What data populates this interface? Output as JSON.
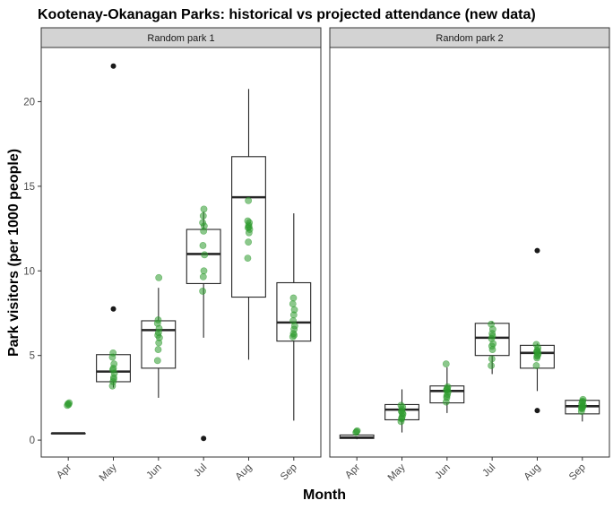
{
  "chart_data": {
    "type": "box",
    "title": "Kootenay-Okanagan Parks: historical vs projected attendance (new data)",
    "xlabel": "Month",
    "ylabel": "Park visitors (per 1000 people)",
    "categories": [
      "Apr",
      "May",
      "Jun",
      "Jul",
      "Aug",
      "Sep"
    ],
    "ylim": [
      -1,
      23.2
    ],
    "yticks": [
      0,
      5,
      10,
      15,
      20
    ],
    "grid": false,
    "colors": {
      "projected_points": "#2e9b2e",
      "box_stroke": "#262626",
      "outlier": "#1a1a1a",
      "strip_fill": "#d3d3d3"
    },
    "panels": [
      {
        "name": "Random park 1",
        "boxes": [
          {
            "month": "Apr",
            "q1": 0.4,
            "median": 0.4,
            "q3": 0.4,
            "whisker_low": 0.4,
            "whisker_high": 0.4,
            "outliers": []
          },
          {
            "month": "May",
            "q1": 3.45,
            "median": 4.05,
            "q3": 5.05,
            "whisker_low": 3.1,
            "whisker_high": 5.1,
            "outliers": [
              22.1,
              7.75
            ]
          },
          {
            "month": "Jun",
            "q1": 4.25,
            "median": 6.5,
            "q3": 7.05,
            "whisker_low": 2.5,
            "whisker_high": 9.0,
            "outliers": []
          },
          {
            "month": "Jul",
            "q1": 9.25,
            "median": 11.0,
            "q3": 12.45,
            "whisker_low": 6.05,
            "whisker_high": 13.5,
            "outliers": [
              0.1
            ]
          },
          {
            "month": "Aug",
            "q1": 8.45,
            "median": 14.35,
            "q3": 16.75,
            "whisker_low": 4.75,
            "whisker_high": 20.75,
            "outliers": []
          },
          {
            "month": "Sep",
            "q1": 5.85,
            "median": 6.95,
            "q3": 9.3,
            "whisker_low": 1.15,
            "whisker_high": 13.4,
            "outliers": []
          }
        ],
        "projected": [
          {
            "month": "Apr",
            "values": [
              2.05,
              2.15,
              2.1,
              2.2
            ]
          },
          {
            "month": "May",
            "values": [
              3.2,
              3.45,
              3.7,
              3.95,
              4.15,
              4.25,
              4.5,
              4.9,
              5.15,
              3.6
            ]
          },
          {
            "month": "Jun",
            "values": [
              4.7,
              5.35,
              5.75,
              6.05,
              6.2,
              6.35,
              6.6,
              6.9,
              7.1,
              9.6
            ]
          },
          {
            "month": "Jul",
            "values": [
              8.8,
              9.65,
              10.0,
              10.95,
              11.5,
              12.35,
              12.65,
              12.85,
              13.25,
              13.65
            ]
          },
          {
            "month": "Aug",
            "values": [
              10.75,
              11.7,
              12.25,
              12.45,
              12.55,
              12.7,
              12.85,
              12.95,
              14.15,
              12.6
            ]
          },
          {
            "month": "Sep",
            "values": [
              6.1,
              6.3,
              6.55,
              6.75,
              7.05,
              7.4,
              7.7,
              8.05,
              8.4,
              6.2
            ]
          }
        ]
      },
      {
        "name": "Random park 2",
        "boxes": [
          {
            "month": "Apr",
            "q1": 0.1,
            "median": 0.15,
            "q3": 0.3,
            "whisker_low": 0.05,
            "whisker_high": 0.35,
            "outliers": []
          },
          {
            "month": "May",
            "q1": 1.2,
            "median": 1.8,
            "q3": 2.1,
            "whisker_low": 0.45,
            "whisker_high": 3.0,
            "outliers": []
          },
          {
            "month": "Jun",
            "q1": 2.2,
            "median": 2.9,
            "q3": 3.2,
            "whisker_low": 1.6,
            "whisker_high": 4.3,
            "outliers": []
          },
          {
            "month": "Jul",
            "q1": 5.0,
            "median": 6.05,
            "q3": 6.9,
            "whisker_low": 3.9,
            "whisker_high": 7.0,
            "outliers": []
          },
          {
            "month": "Aug",
            "q1": 4.25,
            "median": 5.15,
            "q3": 5.6,
            "whisker_low": 2.9,
            "whisker_high": 5.7,
            "outliers": [
              11.2,
              1.75
            ]
          },
          {
            "month": "Sep",
            "q1": 1.55,
            "median": 2.0,
            "q3": 2.35,
            "whisker_low": 1.1,
            "whisker_high": 2.4,
            "outliers": []
          }
        ],
        "projected": [
          {
            "month": "Apr",
            "values": [
              0.45,
              0.5,
              0.55
            ]
          },
          {
            "month": "May",
            "values": [
              1.1,
              1.25,
              1.4,
              1.55,
              1.7,
              1.8,
              1.95,
              2.05,
              1.3,
              1.6
            ]
          },
          {
            "month": "Jun",
            "values": [
              2.25,
              2.5,
              2.7,
              2.85,
              2.95,
              3.05,
              3.15,
              4.5,
              2.6,
              3.0
            ]
          },
          {
            "month": "Jul",
            "values": [
              4.4,
              4.8,
              5.35,
              5.7,
              6.0,
              6.3,
              6.55,
              6.85,
              5.55,
              6.15
            ]
          },
          {
            "month": "Aug",
            "values": [
              4.4,
              4.85,
              5.0,
              5.1,
              5.2,
              5.3,
              5.45,
              5.65,
              4.95,
              5.25
            ]
          },
          {
            "month": "Sep",
            "values": [
              1.7,
              1.85,
              1.95,
              2.05,
              2.15,
              2.25,
              2.4,
              1.9,
              2.0,
              2.3
            ]
          }
        ]
      }
    ]
  }
}
